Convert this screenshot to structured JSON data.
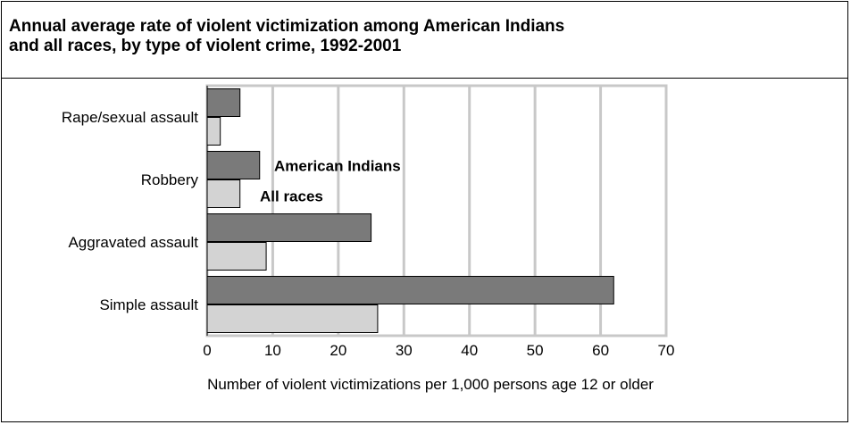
{
  "chart_data": {
    "type": "bar",
    "orientation": "horizontal",
    "title_line1": "Annual average rate of violent victimization among American Indians",
    "title_line2": "and all races, by type of violent crime, 1992-2001",
    "categories": [
      "Rape/sexual assault",
      "Robbery",
      "Aggravated assault",
      "Simple assault"
    ],
    "series": [
      {
        "name": "American Indians",
        "values": [
          5,
          8,
          25,
          62
        ],
        "color": "#7a7a7a"
      },
      {
        "name": "All races",
        "values": [
          2,
          5,
          9,
          26
        ],
        "color": "#d3d3d3"
      }
    ],
    "xlabel": "Number of violent victimizations per 1,000 persons age 12 or older",
    "xlim": [
      0,
      70
    ],
    "xticks": [
      "0",
      "10",
      "20",
      "30",
      "40",
      "50",
      "60",
      "70"
    ],
    "grid": true,
    "legend_placement": "inside, beside Robbery bars"
  }
}
